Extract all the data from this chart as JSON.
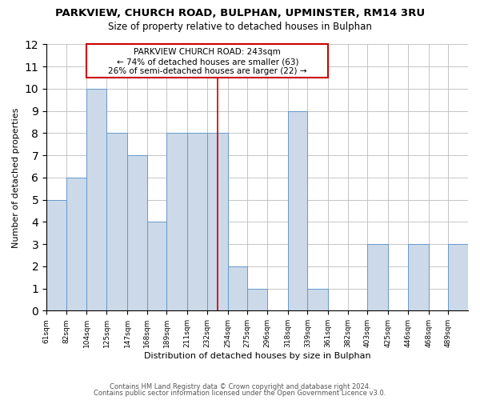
{
  "title": "PARKVIEW, CHURCH ROAD, BULPHAN, UPMINSTER, RM14 3RU",
  "subtitle": "Size of property relative to detached houses in Bulphan",
  "xlabel": "Distribution of detached houses by size in Bulphan",
  "ylabel": "Number of detached properties",
  "bar_edges": [
    61,
    82,
    104,
    125,
    147,
    168,
    189,
    211,
    232,
    254,
    275,
    296,
    318,
    339,
    361,
    382,
    403,
    425,
    446,
    468,
    489
  ],
  "bar_heights": [
    5,
    6,
    10,
    8,
    7,
    4,
    8,
    8,
    8,
    2,
    1,
    0,
    9,
    1,
    0,
    0,
    3,
    0,
    3,
    0,
    3
  ],
  "bar_color": "#ccd9e8",
  "bar_edge_color": "#6699cc",
  "reference_line_x": 243,
  "reference_line_color": "#cc0000",
  "annotation_box_color": "#cc0000",
  "annotation_text_line1": "PARKVIEW CHURCH ROAD: 243sqm",
  "annotation_text_line2": "← 74% of detached houses are smaller (63)",
  "annotation_text_line3": "26% of semi-detached houses are larger (22) →",
  "ylim": [
    0,
    12
  ],
  "yticks": [
    0,
    1,
    2,
    3,
    4,
    5,
    6,
    7,
    8,
    9,
    10,
    11,
    12
  ],
  "tick_labels": [
    "61sqm",
    "82sqm",
    "104sqm",
    "125sqm",
    "147sqm",
    "168sqm",
    "189sqm",
    "211sqm",
    "232sqm",
    "254sqm",
    "275sqm",
    "296sqm",
    "318sqm",
    "339sqm",
    "361sqm",
    "382sqm",
    "403sqm",
    "425sqm",
    "446sqm",
    "468sqm",
    "489sqm"
  ],
  "footer_line1": "Contains HM Land Registry data © Crown copyright and database right 2024.",
  "footer_line2": "Contains public sector information licensed under the Open Government Licence v3.0.",
  "bg_color": "#ffffff",
  "grid_color": "#bbbbbb"
}
